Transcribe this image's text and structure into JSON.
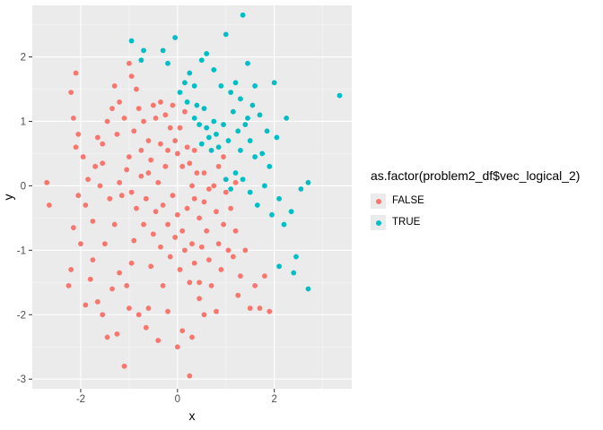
{
  "chart_data": {
    "type": "scatter",
    "xlabel": "x",
    "ylabel": "y",
    "xlim": [
      -3.0,
      3.6
    ],
    "ylim": [
      -3.15,
      2.8
    ],
    "x_ticks": [
      -2,
      0,
      2
    ],
    "x_tick_labels": [
      "-2",
      "0",
      "2"
    ],
    "y_ticks": [
      -3,
      -2,
      -1,
      0,
      1,
      2
    ],
    "y_tick_labels": [
      "-3",
      "-2",
      "-1",
      "0",
      "1",
      "2"
    ],
    "grid": true,
    "legend_placement": "right",
    "legend": {
      "title": "as.factor(problem2_df$vec_logical_2)",
      "entries": [
        "FALSE",
        "TRUE"
      ]
    },
    "series": [
      {
        "name": "FALSE",
        "color": "#F8766D",
        "points": [
          [
            -2.2,
            1.45
          ],
          [
            -2.1,
            1.75
          ],
          [
            -2.15,
            1.05
          ],
          [
            -2.05,
            0.8
          ],
          [
            -2.1,
            0.6
          ],
          [
            -1.95,
            0.45
          ],
          [
            -1.85,
            0.1
          ],
          [
            -1.9,
            -0.3
          ],
          [
            -2.15,
            -0.65
          ],
          [
            -2.0,
            -0.9
          ],
          [
            -2.2,
            -1.3
          ],
          [
            -2.25,
            -1.55
          ],
          [
            -1.8,
            -1.45
          ],
          [
            -1.75,
            -1.15
          ],
          [
            -1.65,
            -1.8
          ],
          [
            -1.55,
            -2.0
          ],
          [
            -1.45,
            -2.35
          ],
          [
            -1.25,
            -2.3
          ],
          [
            -1.35,
            -1.6
          ],
          [
            -1.2,
            -1.35
          ],
          [
            -1.1,
            -2.8
          ],
          [
            -1.0,
            -1.9
          ],
          [
            -0.95,
            -1.2
          ],
          [
            -0.9,
            -0.85
          ],
          [
            -2.7,
            0.05
          ],
          [
            -2.65,
            -0.3
          ],
          [
            -1.6,
            0.0
          ],
          [
            -1.7,
            0.3
          ],
          [
            -1.55,
            0.65
          ],
          [
            -1.45,
            1.0
          ],
          [
            -1.35,
            1.2
          ],
          [
            -1.3,
            1.55
          ],
          [
            -1.2,
            1.3
          ],
          [
            -1.1,
            1.05
          ],
          [
            -1.0,
            1.9
          ],
          [
            -0.95,
            1.7
          ],
          [
            -0.85,
            1.5
          ],
          [
            -0.8,
            1.2
          ],
          [
            -0.7,
            1.0
          ],
          [
            -0.6,
            0.7
          ],
          [
            -0.5,
            1.25
          ],
          [
            -0.45,
            1.05
          ],
          [
            -0.35,
            1.3
          ],
          [
            -0.25,
            1.1
          ],
          [
            -0.15,
            0.9
          ],
          [
            -0.05,
            0.7
          ],
          [
            0.0,
            0.5
          ],
          [
            0.1,
            0.3
          ],
          [
            0.05,
            0.9
          ],
          [
            0.15,
            1.15
          ],
          [
            0.2,
            0.6
          ],
          [
            0.25,
            0.35
          ],
          [
            0.3,
            0.0
          ],
          [
            0.35,
            -0.2
          ],
          [
            0.4,
            0.2
          ],
          [
            0.45,
            -0.5
          ],
          [
            -1.05,
            0.25
          ],
          [
            -1.0,
            0.45
          ],
          [
            -0.95,
            -0.1
          ],
          [
            -0.85,
            -0.35
          ],
          [
            -0.75,
            0.15
          ],
          [
            -0.7,
            -0.6
          ],
          [
            -0.65,
            -0.2
          ],
          [
            -0.55,
            0.4
          ],
          [
            -0.5,
            -0.75
          ],
          [
            -0.45,
            -0.4
          ],
          [
            -0.4,
            0.05
          ],
          [
            -0.35,
            -0.95
          ],
          [
            -0.3,
            -0.3
          ],
          [
            -0.25,
            0.3
          ],
          [
            -0.2,
            -0.6
          ],
          [
            -0.15,
            -1.1
          ],
          [
            -0.1,
            -0.15
          ],
          [
            -0.05,
            -0.8
          ],
          [
            0.0,
            -0.45
          ],
          [
            0.05,
            -1.3
          ],
          [
            0.1,
            -0.7
          ],
          [
            0.15,
            -1.0
          ],
          [
            0.2,
            -0.35
          ],
          [
            0.25,
            -1.5
          ],
          [
            0.3,
            -0.9
          ],
          [
            0.35,
            -1.2
          ],
          [
            0.45,
            -1.5
          ],
          [
            0.5,
            -0.95
          ],
          [
            0.55,
            -0.25
          ],
          [
            0.6,
            -0.7
          ],
          [
            0.65,
            -1.15
          ],
          [
            0.7,
            -1.55
          ],
          [
            0.75,
            0.0
          ],
          [
            0.8,
            -0.4
          ],
          [
            0.85,
            -0.9
          ],
          [
            0.9,
            -1.3
          ],
          [
            0.95,
            -0.6
          ],
          [
            1.0,
            -0.1
          ],
          [
            1.05,
            -1.0
          ],
          [
            1.1,
            -0.35
          ],
          [
            1.15,
            -1.1
          ],
          [
            1.2,
            -0.7
          ],
          [
            1.25,
            -1.7
          ],
          [
            1.3,
            -1.4
          ],
          [
            1.4,
            -1.0
          ],
          [
            1.5,
            -1.9
          ],
          [
            1.6,
            -1.55
          ],
          [
            1.7,
            -1.9
          ],
          [
            1.8,
            -1.4
          ],
          [
            1.9,
            -1.95
          ],
          [
            -0.6,
            -1.9
          ],
          [
            -0.4,
            -2.4
          ],
          [
            -0.2,
            -1.95
          ],
          [
            0.0,
            -2.5
          ],
          [
            0.1,
            -2.25
          ],
          [
            0.25,
            -2.95
          ],
          [
            0.3,
            -2.35
          ],
          [
            0.45,
            -1.75
          ],
          [
            0.55,
            -2.0
          ],
          [
            -0.8,
            -2.0
          ],
          [
            -1.05,
            -1.55
          ],
          [
            -1.3,
            -0.6
          ],
          [
            -1.4,
            -0.2
          ],
          [
            -1.5,
            -0.9
          ],
          [
            -1.55,
            0.35
          ],
          [
            -1.25,
            0.8
          ],
          [
            -1.15,
            -0.15
          ],
          [
            -0.35,
            0.65
          ],
          [
            -0.2,
            0.55
          ],
          [
            0.35,
            0.55
          ],
          [
            0.55,
            0.2
          ],
          [
            0.65,
            -0.05
          ],
          [
            0.85,
            0.3
          ],
          [
            1.2,
            0.05
          ],
          [
            0.95,
            0.45
          ],
          [
            -0.1,
            1.25
          ],
          [
            -0.6,
            0.2
          ],
          [
            -0.75,
            0.55
          ],
          [
            -0.9,
            0.85
          ],
          [
            -1.2,
            0.05
          ],
          [
            -1.75,
            -0.55
          ],
          [
            -1.9,
            -1.85
          ],
          [
            -2.05,
            -0.15
          ],
          [
            -1.65,
            0.75
          ],
          [
            -0.3,
            -1.55
          ],
          [
            -0.55,
            -1.25
          ],
          [
            -0.65,
            -2.2
          ],
          [
            0.8,
            -1.95
          ]
        ]
      },
      {
        "name": "TRUE",
        "color": "#00BFC4",
        "points": [
          [
            -0.95,
            2.25
          ],
          [
            -0.7,
            2.1
          ],
          [
            -0.75,
            1.95
          ],
          [
            -0.3,
            2.1
          ],
          [
            -0.2,
            1.9
          ],
          [
            -0.05,
            2.3
          ],
          [
            0.25,
            1.75
          ],
          [
            0.35,
            1.55
          ],
          [
            0.5,
            1.95
          ],
          [
            0.6,
            2.05
          ],
          [
            0.75,
            1.8
          ],
          [
            0.9,
            1.55
          ],
          [
            1.0,
            2.35
          ],
          [
            1.1,
            1.45
          ],
          [
            1.2,
            1.6
          ],
          [
            1.3,
            1.35
          ],
          [
            1.35,
            2.65
          ],
          [
            1.45,
            1.9
          ],
          [
            1.55,
            1.25
          ],
          [
            1.7,
            1.1
          ],
          [
            1.85,
            0.85
          ],
          [
            2.0,
            1.6
          ],
          [
            2.05,
            0.75
          ],
          [
            2.25,
            1.05
          ],
          [
            3.35,
            1.4
          ],
          [
            0.2,
            1.3
          ],
          [
            0.35,
            1.05
          ],
          [
            0.45,
            0.95
          ],
          [
            0.55,
            1.2
          ],
          [
            0.6,
            0.9
          ],
          [
            0.65,
            0.75
          ],
          [
            0.7,
            0.55
          ],
          [
            0.75,
            1.0
          ],
          [
            0.8,
            0.8
          ],
          [
            0.85,
            0.6
          ],
          [
            0.95,
            0.95
          ],
          [
            1.05,
            0.7
          ],
          [
            1.15,
            1.15
          ],
          [
            1.25,
            0.85
          ],
          [
            1.3,
            0.55
          ],
          [
            1.4,
            0.95
          ],
          [
            1.5,
            0.7
          ],
          [
            1.6,
            0.45
          ],
          [
            1.75,
            0.5
          ],
          [
            1.9,
            0.3
          ],
          [
            1.0,
            0.1
          ],
          [
            1.1,
            -0.05
          ],
          [
            1.2,
            0.2
          ],
          [
            1.35,
            0.1
          ],
          [
            1.5,
            -0.1
          ],
          [
            1.65,
            -0.3
          ],
          [
            1.8,
            0.0
          ],
          [
            1.95,
            -0.45
          ],
          [
            2.1,
            -0.2
          ],
          [
            2.2,
            -0.6
          ],
          [
            2.35,
            -0.4
          ],
          [
            2.55,
            -0.05
          ],
          [
            2.7,
            0.05
          ],
          [
            2.45,
            -1.1
          ],
          [
            2.4,
            -1.35
          ],
          [
            2.7,
            -1.6
          ],
          [
            2.1,
            -1.25
          ],
          [
            0.5,
            0.65
          ],
          [
            0.4,
            1.25
          ],
          [
            0.15,
            1.6
          ],
          [
            0.05,
            1.45
          ],
          [
            1.6,
            1.55
          ],
          [
            1.45,
            1.05
          ]
        ]
      }
    ]
  }
}
